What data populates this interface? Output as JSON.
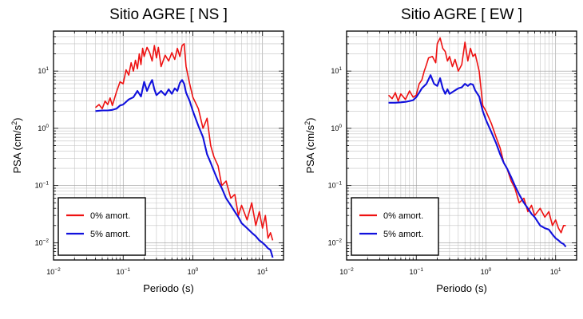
{
  "chart_data": [
    {
      "type": "line",
      "title": "Sitio AGRE [ NS ]",
      "xlabel": "Periodo (s)",
      "ylabel_prefix": "PSA (cm/s",
      "ylabel_exp": "2",
      "ylabel_suffix": ")",
      "x_scale": "log",
      "y_scale": "log",
      "xlim": [
        0.01,
        20
      ],
      "ylim": [
        0.005,
        50
      ],
      "grid": true,
      "legend_position": "bottom-left",
      "x_ticks": [
        {
          "base": "10",
          "exp": "−2",
          "value": 0.01
        },
        {
          "base": "10",
          "exp": "−1",
          "value": 0.1
        },
        {
          "base": "10",
          "exp": "0",
          "value": 1
        },
        {
          "base": "10",
          "exp": "1",
          "value": 10
        }
      ],
      "y_ticks": [
        {
          "base": "10",
          "exp": "−2",
          "value": 0.01
        },
        {
          "base": "10",
          "exp": "−1",
          "value": 0.1
        },
        {
          "base": "10",
          "exp": "0",
          "value": 1
        },
        {
          "base": "10",
          "exp": "1",
          "value": 10
        }
      ],
      "series": [
        {
          "name": "0% amort.",
          "color": "#ee1111",
          "x": [
            0.04,
            0.045,
            0.05,
            0.055,
            0.06,
            0.065,
            0.07,
            0.08,
            0.09,
            0.1,
            0.11,
            0.12,
            0.13,
            0.14,
            0.15,
            0.16,
            0.17,
            0.18,
            0.19,
            0.2,
            0.22,
            0.24,
            0.26,
            0.28,
            0.3,
            0.32,
            0.35,
            0.4,
            0.45,
            0.5,
            0.55,
            0.6,
            0.65,
            0.7,
            0.75,
            0.8,
            0.9,
            1.0,
            1.2,
            1.4,
            1.6,
            1.8,
            2.0,
            2.3,
            2.6,
            3.0,
            3.5,
            4.0,
            4.5,
            5.0,
            6.0,
            7.0,
            8.0,
            9.0,
            10.0,
            11.0,
            12.0,
            13.0,
            14.0
          ],
          "y": [
            2.3,
            2.6,
            2.2,
            3.0,
            2.6,
            3.4,
            2.5,
            4.3,
            6.5,
            6.0,
            10.5,
            8.5,
            14.0,
            10.0,
            15.5,
            11.0,
            20.0,
            13.0,
            25.0,
            18.0,
            26.0,
            21.0,
            15.0,
            28.0,
            17.0,
            26.0,
            12.0,
            19.0,
            15.0,
            21.0,
            16.0,
            25.0,
            18.0,
            28.0,
            30.0,
            12.0,
            6.0,
            3.5,
            2.2,
            1.0,
            1.5,
            0.5,
            0.32,
            0.22,
            0.1,
            0.12,
            0.06,
            0.07,
            0.03,
            0.045,
            0.025,
            0.05,
            0.02,
            0.035,
            0.018,
            0.03,
            0.012,
            0.015,
            0.011
          ]
        },
        {
          "name": "5% amort.",
          "color": "#1111dd",
          "x": [
            0.04,
            0.05,
            0.06,
            0.07,
            0.08,
            0.09,
            0.1,
            0.12,
            0.14,
            0.16,
            0.18,
            0.2,
            0.22,
            0.24,
            0.26,
            0.28,
            0.3,
            0.35,
            0.4,
            0.45,
            0.5,
            0.55,
            0.6,
            0.65,
            0.7,
            0.75,
            0.8,
            0.9,
            1.0,
            1.2,
            1.4,
            1.6,
            1.8,
            2.0,
            2.3,
            2.6,
            3.0,
            3.5,
            4.0,
            4.5,
            5.0,
            6.0,
            7.0,
            8.0,
            9.0,
            10.0,
            11.0,
            12.0,
            13.0,
            14.0
          ],
          "y": [
            2.0,
            2.05,
            2.05,
            2.1,
            2.2,
            2.5,
            2.6,
            3.2,
            3.5,
            4.5,
            3.6,
            6.5,
            4.5,
            5.8,
            7.0,
            4.8,
            3.8,
            4.5,
            3.8,
            4.8,
            4.0,
            5.0,
            4.5,
            6.2,
            7.0,
            6.0,
            4.2,
            3.0,
            2.0,
            1.1,
            0.7,
            0.35,
            0.25,
            0.18,
            0.12,
            0.09,
            0.06,
            0.045,
            0.035,
            0.028,
            0.022,
            0.018,
            0.015,
            0.013,
            0.011,
            0.01,
            0.009,
            0.008,
            0.0075,
            0.0055
          ]
        }
      ]
    },
    {
      "type": "line",
      "title": "Sitio AGRE [ EW ]",
      "xlabel": "Periodo (s)",
      "ylabel_prefix": "PSA (cm/s",
      "ylabel_exp": "2",
      "ylabel_suffix": ")",
      "x_scale": "log",
      "y_scale": "log",
      "xlim": [
        0.01,
        20
      ],
      "ylim": [
        0.005,
        50
      ],
      "grid": true,
      "legend_position": "bottom-left",
      "x_ticks": [
        {
          "base": "10",
          "exp": "−2",
          "value": 0.01
        },
        {
          "base": "10",
          "exp": "−1",
          "value": 0.1
        },
        {
          "base": "10",
          "exp": "0",
          "value": 1
        },
        {
          "base": "10",
          "exp": "1",
          "value": 10
        }
      ],
      "y_ticks": [
        {
          "base": "10",
          "exp": "−2",
          "value": 0.01
        },
        {
          "base": "10",
          "exp": "−1",
          "value": 0.1
        },
        {
          "base": "10",
          "exp": "0",
          "value": 1
        },
        {
          "base": "10",
          "exp": "1",
          "value": 10
        }
      ],
      "series": [
        {
          "name": "0% amort.",
          "color": "#ee1111",
          "x": [
            0.04,
            0.045,
            0.05,
            0.055,
            0.06,
            0.07,
            0.08,
            0.09,
            0.1,
            0.11,
            0.12,
            0.13,
            0.14,
            0.15,
            0.17,
            0.19,
            0.2,
            0.22,
            0.24,
            0.26,
            0.28,
            0.3,
            0.33,
            0.36,
            0.4,
            0.45,
            0.5,
            0.55,
            0.6,
            0.65,
            0.7,
            0.8,
            0.9,
            1.0,
            1.2,
            1.4,
            1.6,
            1.8,
            2.0,
            2.3,
            2.6,
            3.0,
            3.5,
            4.0,
            4.5,
            5.0,
            6.0,
            7.0,
            8.0,
            9.0,
            10.0,
            11.0,
            12.0,
            13.0,
            14.0
          ],
          "y": [
            3.8,
            3.3,
            4.2,
            3.0,
            4.0,
            3.2,
            4.5,
            3.5,
            3.8,
            6.0,
            7.0,
            10.0,
            13.0,
            17.0,
            18.0,
            14.0,
            30.0,
            38.0,
            25.0,
            22.0,
            15.0,
            18.0,
            12.0,
            16.0,
            10.0,
            13.0,
            32.0,
            15.0,
            25.0,
            18.0,
            20.0,
            10.0,
            2.5,
            2.0,
            1.2,
            0.7,
            0.45,
            0.25,
            0.2,
            0.12,
            0.09,
            0.05,
            0.06,
            0.035,
            0.045,
            0.03,
            0.04,
            0.028,
            0.035,
            0.02,
            0.025,
            0.018,
            0.015,
            0.02,
            0.02
          ]
        },
        {
          "name": "5% amort.",
          "color": "#1111dd",
          "x": [
            0.04,
            0.05,
            0.06,
            0.07,
            0.08,
            0.09,
            0.1,
            0.11,
            0.12,
            0.14,
            0.16,
            0.18,
            0.2,
            0.22,
            0.24,
            0.26,
            0.28,
            0.3,
            0.35,
            0.4,
            0.45,
            0.5,
            0.55,
            0.6,
            0.65,
            0.7,
            0.8,
            0.9,
            1.0,
            1.2,
            1.4,
            1.6,
            1.8,
            2.0,
            2.3,
            2.6,
            3.0,
            3.5,
            4.0,
            4.5,
            5.0,
            6.0,
            7.0,
            8.0,
            9.0,
            10.0,
            11.0,
            12.0,
            13.0,
            14.0
          ],
          "y": [
            2.8,
            2.8,
            2.85,
            2.9,
            3.0,
            3.1,
            3.5,
            4.2,
            5.0,
            6.0,
            8.5,
            6.0,
            5.5,
            7.5,
            5.0,
            4.0,
            4.8,
            4.0,
            4.5,
            5.0,
            5.2,
            6.0,
            5.5,
            6.0,
            5.8,
            4.6,
            3.6,
            2.0,
            1.4,
            0.85,
            0.55,
            0.35,
            0.25,
            0.2,
            0.14,
            0.1,
            0.07,
            0.05,
            0.04,
            0.032,
            0.028,
            0.02,
            0.018,
            0.017,
            0.014,
            0.012,
            0.011,
            0.01,
            0.0095,
            0.0085
          ]
        }
      ]
    }
  ]
}
